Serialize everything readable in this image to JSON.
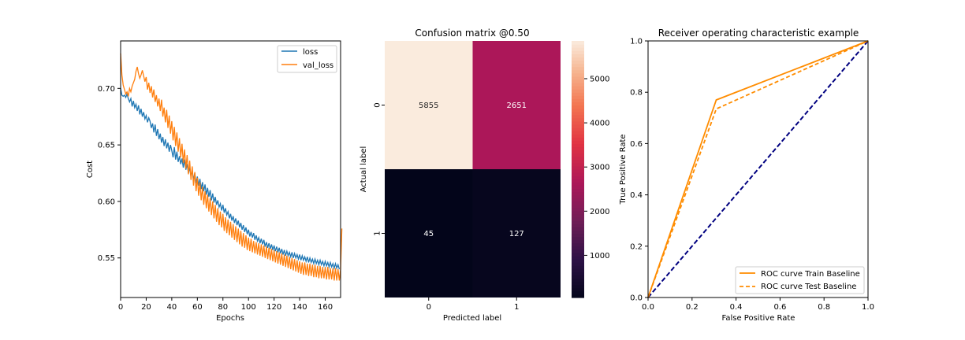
{
  "chart_data": [
    {
      "type": "line",
      "title": "",
      "xlabel": "Epochs",
      "ylabel": "Cost",
      "xlim": [
        0,
        172
      ],
      "ylim": [
        0.515,
        0.742
      ],
      "xticks": [
        0,
        20,
        40,
        60,
        80,
        100,
        120,
        140,
        160
      ],
      "yticks": [
        0.55,
        0.6,
        0.65,
        0.7
      ],
      "ytick_labels": [
        "0.55",
        "0.60",
        "0.65",
        "0.70"
      ],
      "legend_position": "top-right",
      "series": [
        {
          "name": "loss",
          "color": "#1f77b4",
          "values": [
            0.7,
            0.694,
            0.693,
            0.694,
            0.692,
            0.695,
            0.691,
            0.688,
            0.691,
            0.684,
            0.689,
            0.683,
            0.686,
            0.68,
            0.685,
            0.677,
            0.682,
            0.675,
            0.679,
            0.673,
            0.676,
            0.67,
            0.674,
            0.671,
            0.665,
            0.669,
            0.661,
            0.668,
            0.658,
            0.664,
            0.655,
            0.66,
            0.652,
            0.657,
            0.649,
            0.655,
            0.647,
            0.652,
            0.644,
            0.65,
            0.645,
            0.639,
            0.648,
            0.637,
            0.644,
            0.635,
            0.64,
            0.633,
            0.638,
            0.63,
            0.637,
            0.628,
            0.633,
            0.625,
            0.63,
            0.622,
            0.627,
            0.619,
            0.625,
            0.616,
            0.622,
            0.614,
            0.62,
            0.611,
            0.617,
            0.609,
            0.615,
            0.606,
            0.612,
            0.604,
            0.61,
            0.601,
            0.607,
            0.599,
            0.604,
            0.597,
            0.601,
            0.595,
            0.598,
            0.592,
            0.597,
            0.59,
            0.594,
            0.588,
            0.591,
            0.585,
            0.589,
            0.583,
            0.587,
            0.581,
            0.585,
            0.579,
            0.583,
            0.577,
            0.581,
            0.575,
            0.579,
            0.573,
            0.577,
            0.571,
            0.575,
            0.569,
            0.573,
            0.568,
            0.572,
            0.566,
            0.57,
            0.565,
            0.568,
            0.563,
            0.567,
            0.562,
            0.566,
            0.56,
            0.564,
            0.559,
            0.563,
            0.558,
            0.562,
            0.557,
            0.561,
            0.556,
            0.56,
            0.555,
            0.559,
            0.554,
            0.558,
            0.553,
            0.557,
            0.552,
            0.556,
            0.552,
            0.555,
            0.551,
            0.555,
            0.55,
            0.554,
            0.55,
            0.553,
            0.549,
            0.553,
            0.548,
            0.552,
            0.548,
            0.551,
            0.547,
            0.551,
            0.546,
            0.55,
            0.546,
            0.549,
            0.545,
            0.549,
            0.545,
            0.548,
            0.544,
            0.548,
            0.544,
            0.547,
            0.543,
            0.547,
            0.543,
            0.546,
            0.542,
            0.546,
            0.542,
            0.545,
            0.541,
            0.545,
            0.541,
            0.544,
            0.54
          ]
        },
        {
          "name": "val_loss",
          "color": "#ff7f0e",
          "values": [
            0.731,
            0.712,
            0.703,
            0.699,
            0.695,
            0.697,
            0.693,
            0.7,
            0.697,
            0.702,
            0.705,
            0.708,
            0.715,
            0.719,
            0.713,
            0.709,
            0.712,
            0.716,
            0.711,
            0.706,
            0.71,
            0.699,
            0.705,
            0.696,
            0.702,
            0.692,
            0.699,
            0.688,
            0.694,
            0.684,
            0.691,
            0.68,
            0.69,
            0.675,
            0.683,
            0.67,
            0.681,
            0.665,
            0.676,
            0.66,
            0.671,
            0.654,
            0.666,
            0.649,
            0.661,
            0.644,
            0.656,
            0.639,
            0.651,
            0.634,
            0.646,
            0.629,
            0.641,
            0.624,
            0.636,
            0.619,
            0.631,
            0.614,
            0.626,
            0.609,
            0.621,
            0.605,
            0.617,
            0.601,
            0.613,
            0.597,
            0.609,
            0.594,
            0.606,
            0.591,
            0.603,
            0.588,
            0.6,
            0.585,
            0.597,
            0.582,
            0.594,
            0.579,
            0.591,
            0.577,
            0.589,
            0.574,
            0.586,
            0.572,
            0.584,
            0.57,
            0.582,
            0.568,
            0.58,
            0.566,
            0.578,
            0.564,
            0.576,
            0.562,
            0.574,
            0.56,
            0.572,
            0.559,
            0.57,
            0.557,
            0.568,
            0.556,
            0.567,
            0.555,
            0.565,
            0.554,
            0.564,
            0.553,
            0.563,
            0.552,
            0.562,
            0.551,
            0.561,
            0.55,
            0.56,
            0.549,
            0.559,
            0.548,
            0.558,
            0.547,
            0.557,
            0.546,
            0.556,
            0.545,
            0.555,
            0.544,
            0.554,
            0.543,
            0.553,
            0.542,
            0.552,
            0.541,
            0.551,
            0.54,
            0.55,
            0.539,
            0.549,
            0.538,
            0.548,
            0.537,
            0.547,
            0.536,
            0.546,
            0.535,
            0.546,
            0.535,
            0.545,
            0.534,
            0.545,
            0.534,
            0.544,
            0.533,
            0.544,
            0.533,
            0.543,
            0.532,
            0.543,
            0.532,
            0.542,
            0.532,
            0.542,
            0.531,
            0.542,
            0.531,
            0.541,
            0.531,
            0.541,
            0.53,
            0.541,
            0.53,
            0.54,
            0.53,
            0.54,
            0.576
          ]
        }
      ]
    },
    {
      "type": "heatmap",
      "title": "Confusion matrix @0.50",
      "xlabel": "Predicted label",
      "ylabel": "Actual label",
      "x_categories": [
        "0",
        "1"
      ],
      "y_categories": [
        "0",
        "1"
      ],
      "values": [
        [
          5855,
          2651
        ],
        [
          45,
          127
        ]
      ],
      "value_labels": [
        [
          "5855",
          "2651"
        ],
        [
          "45",
          "127"
        ]
      ],
      "colorbar": {
        "min": 45,
        "max": 5855,
        "ticks": [
          1000,
          2000,
          3000,
          4000,
          5000
        ],
        "tick_labels": [
          "1000",
          "2000",
          "3000",
          "4000",
          "5000"
        ],
        "colormap": "rocket"
      }
    },
    {
      "type": "line",
      "title": "Receiver operating characteristic example",
      "xlabel": "False Positive Rate",
      "ylabel": "True Positive Rate",
      "xlim": [
        0.0,
        1.0
      ],
      "ylim": [
        0.0,
        1.0
      ],
      "xticks": [
        0.0,
        0.2,
        0.4,
        0.6,
        0.8,
        1.0
      ],
      "yticks": [
        0.0,
        0.2,
        0.4,
        0.6,
        0.8,
        1.0
      ],
      "xtick_labels": [
        "0.0",
        "0.2",
        "0.4",
        "0.6",
        "0.8",
        "1.0"
      ],
      "ytick_labels": [
        "0.0",
        "0.2",
        "0.4",
        "0.6",
        "0.8",
        "1.0"
      ],
      "legend_position": "bottom-right",
      "series": [
        {
          "name": "ROC curve Train Baseline",
          "color": "#ff8c00",
          "style": "solid",
          "x": [
            0.0,
            0.31,
            1.0
          ],
          "y": [
            0.0,
            0.77,
            1.0
          ]
        },
        {
          "name": "ROC curve Test Baseline",
          "color": "#ff8c00",
          "style": "dashed",
          "x": [
            0.0,
            0.31,
            1.0
          ],
          "y": [
            0.0,
            0.735,
            1.0
          ]
        },
        {
          "name": "",
          "color": "#000080",
          "style": "dashed",
          "x": [
            0.0,
            1.0
          ],
          "y": [
            0.0,
            1.0
          ]
        }
      ]
    }
  ]
}
